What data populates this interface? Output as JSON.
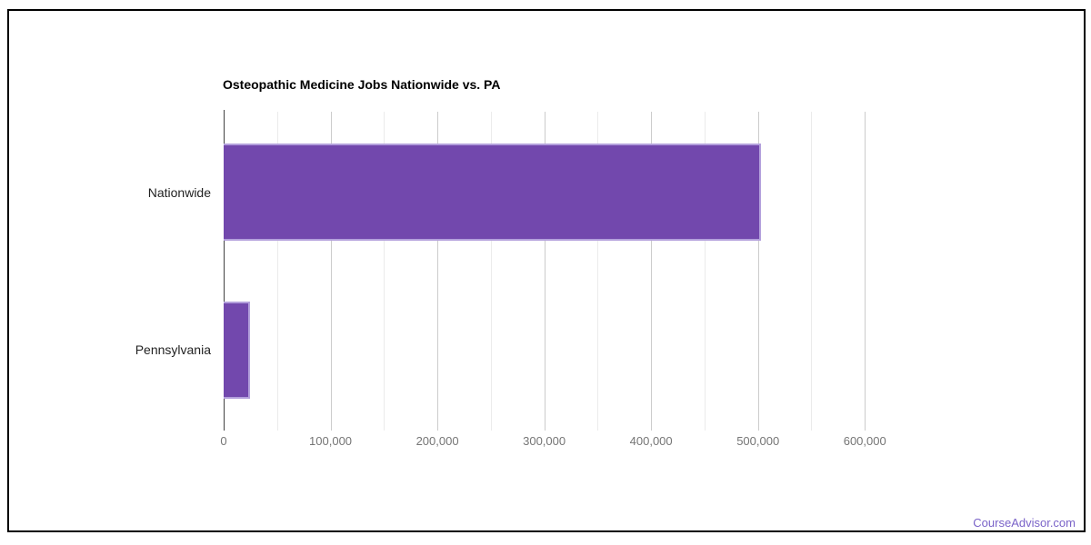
{
  "frame": {
    "border_color": "#000000"
  },
  "watermark": {
    "text": "CourseAdvisor.com",
    "color": "#7a63c8"
  },
  "chart_data": {
    "type": "bar",
    "orientation": "horizontal",
    "title": "Osteopathic Medicine Jobs Nationwide vs. PA",
    "categories": [
      "Nationwide",
      "Pennsylvania"
    ],
    "values": [
      503000,
      25000
    ],
    "xlabel": "",
    "ylabel": "",
    "xlim": [
      0,
      650000
    ],
    "x_ticks": [
      0,
      100000,
      200000,
      300000,
      400000,
      500000,
      600000
    ],
    "x_tick_labels": [
      "0",
      "100,000",
      "200,000",
      "300,000",
      "400,000",
      "500,000",
      "600,000"
    ],
    "minor_gridline_step": 50000,
    "major_gridline_step": 100000,
    "grid": true,
    "legend": "none",
    "colors": {
      "bar_fill": "#7248ad",
      "bar_stroke": "#b3a0dc",
      "axis_line": "#424242",
      "grid_major": "#cccccc",
      "grid_minor": "#ebebeb",
      "tick_label": "#757575",
      "category_label": "#222222",
      "title": "#000000"
    }
  }
}
